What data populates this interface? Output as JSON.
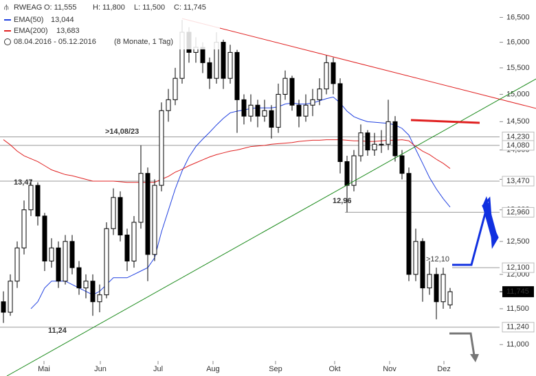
{
  "header": {
    "symbol": "RWEAG",
    "open": "O: 11,555",
    "high": "H: 11,800",
    "low": "L: 11,500",
    "close": "C: 11,745",
    "ema50_value": "13,044",
    "ema200_value": "13,683",
    "range": "08.04.2016 - 05.12.2016",
    "span": "(8 Monate, 1 Tag)"
  },
  "chart_data": {
    "type": "candlestick",
    "log_scale": true,
    "grid": false,
    "ylim": [
      10.58,
      16.86
    ],
    "yticks": [
      {
        "value": 11,
        "label": "11,000"
      },
      {
        "value": 11.5,
        "label": "11,500"
      },
      {
        "value": 12,
        "label": "12,000"
      },
      {
        "value": 12.5,
        "label": "12,500"
      },
      {
        "value": 13,
        "label": "13,000"
      },
      {
        "value": 13.5,
        "label": "13,500"
      },
      {
        "value": 14,
        "label": "14,000"
      },
      {
        "value": 14.5,
        "label": "14,500"
      },
      {
        "value": 15,
        "label": "15,000"
      },
      {
        "value": 15.5,
        "label": "15,500"
      },
      {
        "value": 16,
        "label": "16,000"
      },
      {
        "value": 16.5,
        "label": "16,500"
      }
    ],
    "xticks": [
      {
        "value": 5.9,
        "label": "Mai"
      },
      {
        "value": 14.1,
        "label": "Jun"
      },
      {
        "value": 22.5,
        "label": "Jul"
      },
      {
        "value": 30.5,
        "label": "Aug"
      },
      {
        "value": 39.6,
        "label": "Sep"
      },
      {
        "value": 48.2,
        "label": "Okt"
      },
      {
        "value": 56.2,
        "label": "Nov"
      },
      {
        "value": 64.1,
        "label": "Dez"
      }
    ],
    "ohlc": [
      [
        11.6,
        11.75,
        11.3,
        11.45
      ],
      [
        11.45,
        12.0,
        11.4,
        11.9
      ],
      [
        11.9,
        12.5,
        11.8,
        12.4
      ],
      [
        12.4,
        13.15,
        12.3,
        13.0
      ],
      [
        13.0,
        13.5,
        12.9,
        13.4
      ],
      [
        13.4,
        13.45,
        12.75,
        12.9
      ],
      [
        12.9,
        12.95,
        12.05,
        12.2
      ],
      [
        12.2,
        12.55,
        12.1,
        12.4
      ],
      [
        12.4,
        12.5,
        11.8,
        11.9
      ],
      [
        11.9,
        12.6,
        11.85,
        12.5
      ],
      [
        12.5,
        12.6,
        12.0,
        12.1
      ],
      [
        12.1,
        12.2,
        11.7,
        11.8
      ],
      [
        11.8,
        12.0,
        11.65,
        11.9
      ],
      [
        11.9,
        12.0,
        11.4,
        11.6
      ],
      [
        11.6,
        11.85,
        11.45,
        11.7
      ],
      [
        11.7,
        12.8,
        11.65,
        12.7
      ],
      [
        12.7,
        13.35,
        12.6,
        13.2
      ],
      [
        13.2,
        13.3,
        12.5,
        12.6
      ],
      [
        12.6,
        12.7,
        12.05,
        12.2
      ],
      [
        12.2,
        12.9,
        12.1,
        12.8
      ],
      [
        12.8,
        14.08,
        12.7,
        13.6
      ],
      [
        13.6,
        13.7,
        11.9,
        12.3
      ],
      [
        12.3,
        13.5,
        12.2,
        13.4
      ],
      [
        13.4,
        14.85,
        13.3,
        14.7
      ],
      [
        14.7,
        15.1,
        14.5,
        14.9
      ],
      [
        14.9,
        15.5,
        14.8,
        15.3
      ],
      [
        15.3,
        16.45,
        15.2,
        16.2
      ],
      [
        16.2,
        16.3,
        15.6,
        15.8
      ],
      [
        15.8,
        16.1,
        15.6,
        15.9
      ],
      [
        15.9,
        16.0,
        15.4,
        15.6
      ],
      [
        15.6,
        15.7,
        15.1,
        15.3
      ],
      [
        15.3,
        16.2,
        15.2,
        16.0
      ],
      [
        16.0,
        16.05,
        15.1,
        15.3
      ],
      [
        15.3,
        15.95,
        15.2,
        15.8
      ],
      [
        15.8,
        15.85,
        14.3,
        14.9
      ],
      [
        14.9,
        15.0,
        14.45,
        14.6
      ],
      [
        14.6,
        15.0,
        14.5,
        14.8
      ],
      [
        14.8,
        14.9,
        14.4,
        14.6
      ],
      [
        14.6,
        14.9,
        14.5,
        14.7
      ],
      [
        14.7,
        14.8,
        14.2,
        14.4
      ],
      [
        14.4,
        15.2,
        14.3,
        15.0
      ],
      [
        15.0,
        15.45,
        14.9,
        15.3
      ],
      [
        15.3,
        15.35,
        14.7,
        14.8
      ],
      [
        14.8,
        14.9,
        14.4,
        14.6
      ],
      [
        14.6,
        15.0,
        14.5,
        14.8
      ],
      [
        14.8,
        15.1,
        14.6,
        14.9
      ],
      [
        14.9,
        15.3,
        14.8,
        15.1
      ],
      [
        15.1,
        15.75,
        15.0,
        15.6
      ],
      [
        15.6,
        15.7,
        15.0,
        15.2
      ],
      [
        15.2,
        15.3,
        13.6,
        13.8
      ],
      [
        13.8,
        13.9,
        12.96,
        13.4
      ],
      [
        13.4,
        14.0,
        13.3,
        13.9
      ],
      [
        13.9,
        14.45,
        13.8,
        14.3
      ],
      [
        14.3,
        14.35,
        13.9,
        14.0
      ],
      [
        14.0,
        14.3,
        13.9,
        14.1
      ],
      [
        14.1,
        14.35,
        13.95,
        14.1
      ],
      [
        14.1,
        14.9,
        14.0,
        14.5
      ],
      [
        14.5,
        14.6,
        13.8,
        13.9
      ],
      [
        13.9,
        14.0,
        13.5,
        13.6
      ],
      [
        13.6,
        13.7,
        11.9,
        12.0
      ],
      [
        12.0,
        12.7,
        11.9,
        12.5
      ],
      [
        12.5,
        12.55,
        11.6,
        11.8
      ],
      [
        11.8,
        12.2,
        11.7,
        12.0
      ],
      [
        12.0,
        12.1,
        11.35,
        11.6
      ],
      [
        11.6,
        12.1,
        11.5,
        12.0
      ],
      [
        11.555,
        11.8,
        11.5,
        11.745
      ]
    ],
    "series": [
      {
        "name": "EMA(50)",
        "color": "#2040e0",
        "values": [
          null,
          null,
          null,
          null,
          11.5,
          11.6,
          11.8,
          11.9,
          11.9,
          11.9,
          11.85,
          11.8,
          11.75,
          11.7,
          11.75,
          11.85,
          11.95,
          11.95,
          11.95,
          12.0,
          12.05,
          12.1,
          12.25,
          12.65,
          12.99,
          13.34,
          13.64,
          13.88,
          14.06,
          14.19,
          14.31,
          14.44,
          14.56,
          14.66,
          14.69,
          14.71,
          14.74,
          14.75,
          14.75,
          14.75,
          14.77,
          14.82,
          14.84,
          14.82,
          14.82,
          14.84,
          14.88,
          14.92,
          14.95,
          14.84,
          14.69,
          14.59,
          14.54,
          14.5,
          14.49,
          14.48,
          14.47,
          14.44,
          14.38,
          14.26,
          14.01,
          13.77,
          13.53,
          13.34,
          13.18,
          13.044
        ]
      },
      {
        "name": "EMA(200)",
        "color": "#e02020",
        "values": [
          14.18,
          14.09,
          13.98,
          13.9,
          13.85,
          13.8,
          13.73,
          13.66,
          13.62,
          13.58,
          13.56,
          13.53,
          13.5,
          13.47,
          13.47,
          13.47,
          13.47,
          13.46,
          13.45,
          13.45,
          13.45,
          13.45,
          13.45,
          13.5,
          13.55,
          13.62,
          13.67,
          13.73,
          13.78,
          13.83,
          13.88,
          13.92,
          13.95,
          13.98,
          14.0,
          14.03,
          14.06,
          14.07,
          14.08,
          14.1,
          14.11,
          14.12,
          14.13,
          14.15,
          14.16,
          14.17,
          14.17,
          14.18,
          14.18,
          14.18,
          14.17,
          14.16,
          14.16,
          14.15,
          14.15,
          14.16,
          14.17,
          14.17,
          14.18,
          14.16,
          14.06,
          13.98,
          13.92,
          13.84,
          13.77,
          13.683
        ]
      }
    ],
    "levels": [
      {
        "value": 14.23,
        "label": "14,230"
      },
      {
        "value": 14.08,
        "label": "14,080"
      },
      {
        "value": 13.47,
        "label": "13,470"
      },
      {
        "value": 12.96,
        "label": "12,960"
      },
      {
        "value": 12.1,
        "label": "12,100"
      },
      {
        "value": 11.24,
        "label": "11,240"
      }
    ],
    "last": {
      "value": 11.745,
      "label": "11,745"
    },
    "annotations": [
      ">14,08/23",
      "13,47",
      "12,96",
      "11,24",
      ">12,10"
    ]
  }
}
